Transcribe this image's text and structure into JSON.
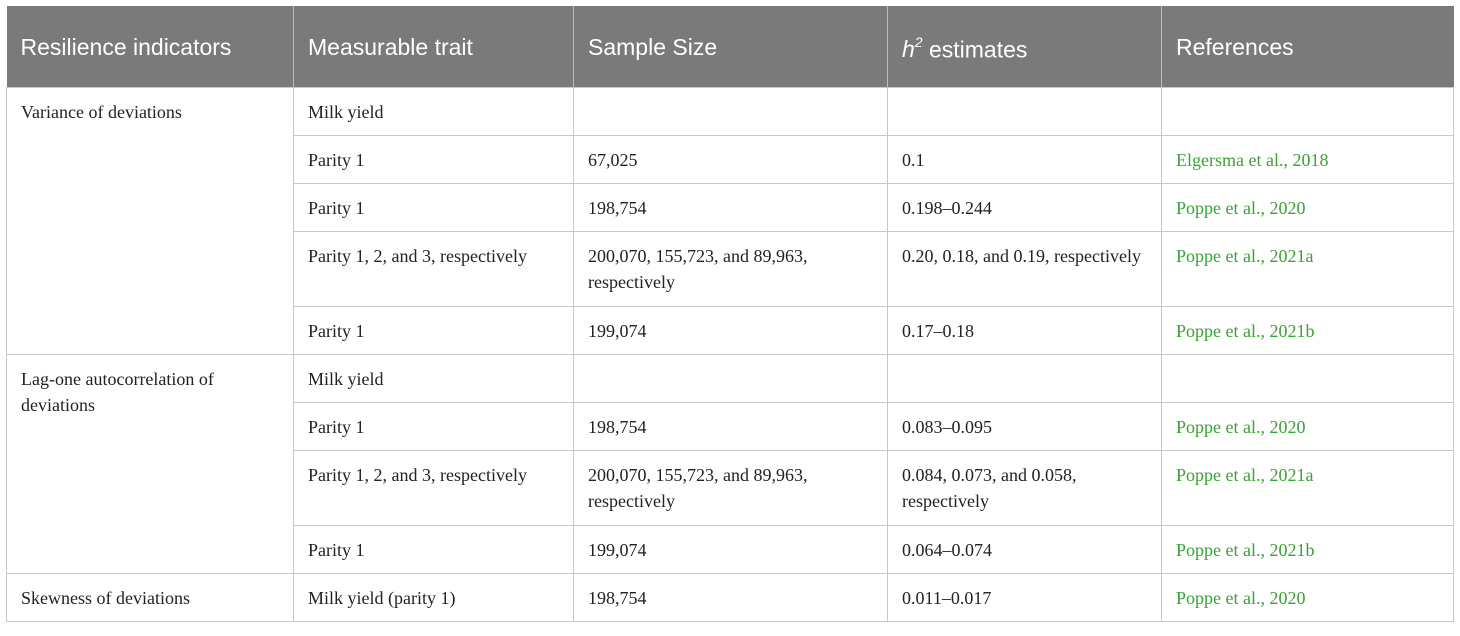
{
  "headers": {
    "indicator": "Resilience indicators",
    "trait": "Measurable trait",
    "sample": "Sample Size",
    "h2_base": "h",
    "h2_sup": "2",
    "h2_rest": " estimates",
    "refs": "References"
  },
  "groups": [
    {
      "indicator": "Variance of deviations",
      "rows": [
        {
          "trait": "Milk yield",
          "sample": "",
          "h2": "",
          "ref": ""
        },
        {
          "trait": "Parity 1",
          "sample": "67,025",
          "h2": "0.1",
          "ref": "Elgersma et al., 2018"
        },
        {
          "trait": "Parity 1",
          "sample": "198,754",
          "h2": "0.198–0.244",
          "ref": "Poppe et al., 2020"
        },
        {
          "trait": "Parity 1, 2, and 3, respectively",
          "sample": "200,070, 155,723, and 89,963, respectively",
          "h2": "0.20, 0.18, and 0.19, respectively",
          "ref": "Poppe et al., 2021a"
        },
        {
          "trait": "Parity 1",
          "sample": "199,074",
          "h2": "0.17–0.18",
          "ref": "Poppe et al., 2021b"
        }
      ]
    },
    {
      "indicator": "Lag-one autocorrelation of deviations",
      "rows": [
        {
          "trait": "Milk yield",
          "sample": "",
          "h2": "",
          "ref": ""
        },
        {
          "trait": "Parity 1",
          "sample": "198,754",
          "h2": "0.083–0.095",
          "ref": "Poppe et al., 2020"
        },
        {
          "trait": "Parity 1, 2, and 3, respectively",
          "sample": "200,070, 155,723, and 89,963, respectively",
          "h2": "0.084, 0.073, and 0.058, respectively",
          "ref": "Poppe et al., 2021a"
        },
        {
          "trait": "Parity 1",
          "sample": "199,074",
          "h2": "0.064–0.074",
          "ref": "Poppe et al., 2021b"
        }
      ]
    },
    {
      "indicator": "Skewness of deviations",
      "rows": [
        {
          "trait": "Milk yield (parity 1)",
          "sample": "198,754",
          "h2": "0.011–0.017",
          "ref": "Poppe et al., 2020"
        }
      ]
    }
  ]
}
